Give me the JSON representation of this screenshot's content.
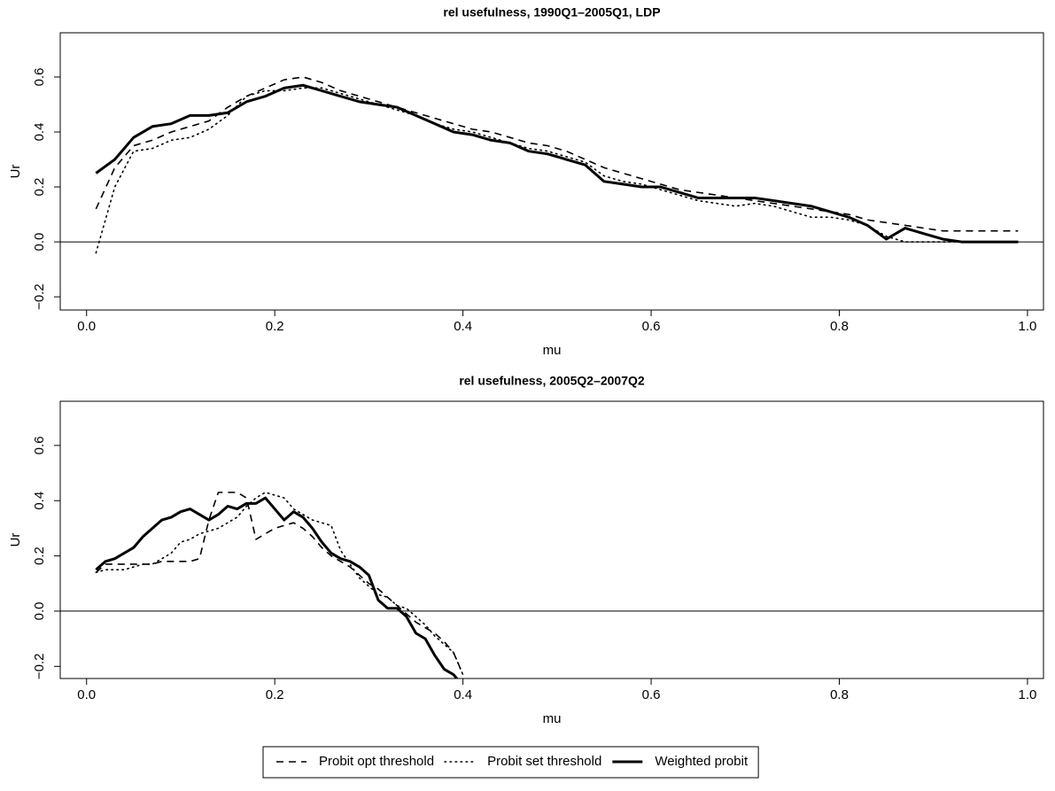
{
  "chart_data": [
    {
      "type": "line",
      "title": "rel usefulness, 1990Q1–2005Q1, LDP",
      "x_label": "mu",
      "y_label": "Ur",
      "x": [
        0.01,
        0.03,
        0.05,
        0.07,
        0.09,
        0.11,
        0.13,
        0.15,
        0.17,
        0.19,
        0.21,
        0.23,
        0.25,
        0.27,
        0.29,
        0.31,
        0.33,
        0.35,
        0.37,
        0.39,
        0.41,
        0.43,
        0.45,
        0.47,
        0.49,
        0.51,
        0.53,
        0.55,
        0.57,
        0.59,
        0.61,
        0.63,
        0.65,
        0.67,
        0.69,
        0.71,
        0.73,
        0.75,
        0.77,
        0.79,
        0.81,
        0.83,
        0.85,
        0.87,
        0.89,
        0.91,
        0.93,
        0.95,
        0.97,
        0.99
      ],
      "series": [
        {
          "name": "Probit opt threshold",
          "color": "#000000",
          "dash": "dashed",
          "values": [
            0.12,
            0.27,
            0.35,
            0.37,
            0.4,
            0.42,
            0.44,
            0.49,
            0.53,
            0.56,
            0.59,
            0.6,
            0.58,
            0.55,
            0.53,
            0.51,
            0.49,
            0.47,
            0.45,
            0.43,
            0.41,
            0.4,
            0.38,
            0.36,
            0.35,
            0.33,
            0.3,
            0.27,
            0.25,
            0.23,
            0.21,
            0.19,
            0.18,
            0.17,
            0.16,
            0.15,
            0.14,
            0.13,
            0.12,
            0.11,
            0.1,
            0.08,
            0.07,
            0.06,
            0.05,
            0.04,
            0.04,
            0.04,
            0.04,
            0.04
          ]
        },
        {
          "name": "Probit set threshold",
          "color": "#000000",
          "dash": "dotted",
          "values": [
            -0.04,
            0.2,
            0.33,
            0.34,
            0.37,
            0.38,
            0.41,
            0.46,
            0.53,
            0.55,
            0.55,
            0.56,
            0.56,
            0.54,
            0.52,
            0.5,
            0.48,
            0.46,
            0.43,
            0.41,
            0.4,
            0.38,
            0.36,
            0.34,
            0.33,
            0.31,
            0.29,
            0.24,
            0.22,
            0.21,
            0.19,
            0.17,
            0.15,
            0.14,
            0.13,
            0.14,
            0.13,
            0.11,
            0.09,
            0.09,
            0.08,
            0.06,
            0.02,
            0,
            0,
            0,
            0,
            0,
            0,
            0
          ]
        },
        {
          "name": "Weighted probit",
          "color": "#000000",
          "dash": "solid",
          "values": [
            0.25,
            0.3,
            0.38,
            0.42,
            0.43,
            0.46,
            0.46,
            0.47,
            0.51,
            0.53,
            0.56,
            0.57,
            0.55,
            0.53,
            0.51,
            0.5,
            0.49,
            0.46,
            0.43,
            0.4,
            0.39,
            0.37,
            0.36,
            0.33,
            0.32,
            0.3,
            0.28,
            0.22,
            0.21,
            0.2,
            0.2,
            0.18,
            0.16,
            0.16,
            0.16,
            0.16,
            0.15,
            0.14,
            0.13,
            0.11,
            0.09,
            0.06,
            0.01,
            0.05,
            0.03,
            0.01,
            0,
            0,
            0,
            0
          ]
        }
      ],
      "hline": 0,
      "legend": "bottom",
      "xlim": [
        -0.028,
        1.017
      ],
      "ylim": [
        -0.248,
        0.761
      ],
      "xticks": [
        {
          "value": 0,
          "label": "0.0"
        },
        0.2,
        0.4,
        0.6,
        0.8,
        {
          "value": 1,
          "label": "1.0"
        }
      ],
      "yticks": [
        {
          "value": -0.2,
          "label": "−0.2"
        },
        {
          "value": 0,
          "label": "0.0"
        },
        0.2,
        0.4,
        0.6
      ]
    },
    {
      "type": "line",
      "title": "rel usefulness, 2005Q2–2007Q2",
      "x_label": "mu",
      "y_label": "Ur",
      "x": [
        0.01,
        0.02,
        0.03,
        0.04,
        0.05,
        0.06,
        0.07,
        0.08,
        0.09,
        0.1,
        0.11,
        0.12,
        0.13,
        0.14,
        0.15,
        0.16,
        0.17,
        0.18,
        0.19,
        0.2,
        0.21,
        0.22,
        0.23,
        0.24,
        0.25,
        0.26,
        0.27,
        0.28,
        0.29,
        0.3,
        0.31,
        0.32,
        0.33,
        0.34,
        0.35,
        0.36,
        0.37,
        0.38,
        0.39,
        0.4
      ],
      "series": [
        {
          "color": "#000000",
          "dash": "dashed",
          "values": [
            0.14,
            0.17,
            0.17,
            0.17,
            0.17,
            0.17,
            0.17,
            0.18,
            0.18,
            0.18,
            0.18,
            0.19,
            0.33,
            0.43,
            0.43,
            0.43,
            0.41,
            0.26,
            0.28,
            0.3,
            0.31,
            0.32,
            0.3,
            0.27,
            0.23,
            0.2,
            0.18,
            0.16,
            0.13,
            0.1,
            0.08,
            0.05,
            0.02,
            -0.01,
            -0.04,
            -0.06,
            -0.08,
            -0.11,
            -0.15,
            -0.23
          ]
        },
        {
          "color": "#000000",
          "dash": "dotted",
          "values": [
            0.14,
            0.15,
            0.15,
            0.15,
            0.16,
            0.17,
            0.17,
            0.19,
            0.21,
            0.25,
            0.26,
            0.28,
            0.29,
            0.3,
            0.32,
            0.34,
            0.38,
            0.41,
            0.43,
            0.42,
            0.41,
            0.37,
            0.35,
            0.33,
            0.32,
            0.31,
            0.22,
            0.17,
            0.12,
            0.09,
            0.06,
            0.05,
            0.02,
            0.01,
            -0.02,
            -0.05,
            -0.09,
            -0.12,
            -0.15,
            -0.23
          ]
        },
        {
          "color": "#000000",
          "dash": "solid",
          "values": [
            0.15,
            0.18,
            0.19,
            0.21,
            0.23,
            0.27,
            0.3,
            0.33,
            0.34,
            0.36,
            0.37,
            0.35,
            0.33,
            0.35,
            0.38,
            0.37,
            0.39,
            0.39,
            0.41,
            0.37,
            0.33,
            0.36,
            0.34,
            0.3,
            0.25,
            0.21,
            0.19,
            0.18,
            0.16,
            0.13,
            0.04,
            0.01,
            0.01,
            -0.02,
            -0.08,
            -0.1,
            -0.16,
            -0.21,
            -0.23,
            -0.27
          ]
        }
      ],
      "hline": 0,
      "xlim": [
        -0.028,
        1.017
      ],
      "ylim": [
        -0.244,
        0.76
      ],
      "xticks": [
        {
          "value": 0,
          "label": "0.0"
        },
        0.2,
        0.4,
        0.6,
        0.8,
        {
          "value": 1,
          "label": "1.0"
        }
      ],
      "yticks": [
        {
          "value": -0.2,
          "label": "−0.2"
        },
        {
          "value": 0,
          "label": "0.0"
        },
        0.2,
        0.4,
        0.6
      ]
    }
  ]
}
